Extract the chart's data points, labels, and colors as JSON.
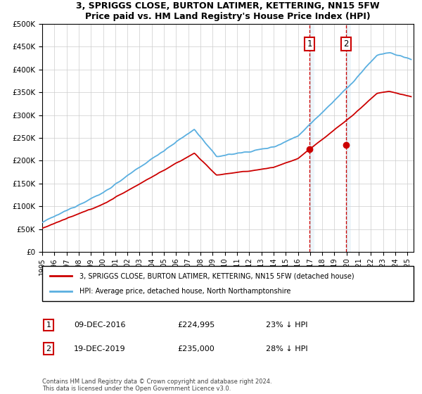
{
  "title": "3, SPRIGGS CLOSE, BURTON LATIMER, KETTERING, NN15 5FW",
  "subtitle": "Price paid vs. HM Land Registry's House Price Index (HPI)",
  "legend_line1": "3, SPRIGGS CLOSE, BURTON LATIMER, KETTERING, NN15 5FW (detached house)",
  "legend_line2": "HPI: Average price, detached house, North Northamptonshire",
  "ann1_date": "09-DEC-2016",
  "ann1_price": "£224,995",
  "ann1_pct": "23% ↓ HPI",
  "ann1_year": 2016.96,
  "ann1_val": 224995,
  "ann2_date": "19-DEC-2019",
  "ann2_price": "£235,000",
  "ann2_pct": "28% ↓ HPI",
  "ann2_year": 2019.96,
  "ann2_val": 235000,
  "footer": "Contains HM Land Registry data © Crown copyright and database right 2024.\nThis data is licensed under the Open Government Licence v3.0.",
  "hpi_color": "#5aafe0",
  "price_color": "#cc0000",
  "shade_color": "#c8dff0",
  "ylim": [
    0,
    500000
  ],
  "yticks": [
    0,
    50000,
    100000,
    150000,
    200000,
    250000,
    300000,
    350000,
    400000,
    450000,
    500000
  ],
  "xlim_start": 1995,
  "xlim_end": 2025.5
}
